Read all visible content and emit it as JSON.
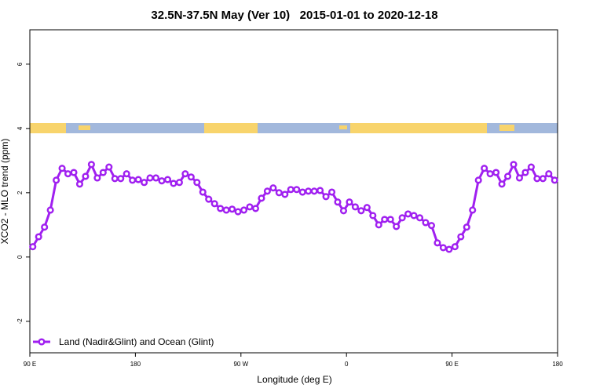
{
  "chart_data": {
    "type": "line",
    "title": "32.5N-37.5N May (Ver 10)   2015-01-01 to 2020-12-18",
    "xlabel": "Longitude (deg E)",
    "ylabel": "XCO2 - MLO trend (ppm)",
    "x": [
      92.5,
      97.5,
      102.5,
      107.5,
      112.5,
      117.5,
      122.5,
      127.5,
      132.5,
      137.5,
      142.5,
      147.5,
      152.5,
      157.5,
      162.5,
      167.5,
      172.5,
      177.5,
      182.5,
      187.5,
      192.5,
      197.5,
      202.5,
      207.5,
      212.5,
      217.5,
      222.5,
      227.5,
      232.5,
      237.5,
      242.5,
      247.5,
      252.5,
      257.5,
      262.5,
      267.5,
      272.5,
      277.5,
      282.5,
      287.5,
      292.5,
      297.5,
      302.5,
      307.5,
      312.5,
      317.5,
      322.5,
      327.5,
      332.5,
      337.5,
      342.5,
      347.5,
      352.5,
      357.5,
      362.5,
      367.5,
      372.5,
      377.5,
      382.5,
      387.5,
      392.5,
      397.5,
      402.5,
      407.5,
      412.5,
      417.5,
      422.5,
      427.5,
      432.5,
      437.5,
      442.5,
      447.5,
      452.5,
      457.5,
      462.5,
      467.5,
      472.5,
      477.5,
      482.5,
      487.5,
      492.5,
      497.5,
      502.5,
      507.5,
      512.5,
      517.5,
      522.5,
      527.5,
      532.5,
      537.5
    ],
    "series": [
      {
        "name": "Land (Nadir&Glint) and Ocean (Glint)",
        "color": "#a020f0",
        "values": [
          0.32,
          0.63,
          0.93,
          1.46,
          2.39,
          2.76,
          2.59,
          2.63,
          2.27,
          2.51,
          2.88,
          2.46,
          2.63,
          2.8,
          2.44,
          2.44,
          2.59,
          2.39,
          2.41,
          2.32,
          2.46,
          2.46,
          2.37,
          2.41,
          2.29,
          2.32,
          2.59,
          2.49,
          2.32,
          2.02,
          1.8,
          1.66,
          1.51,
          1.46,
          1.49,
          1.41,
          1.46,
          1.56,
          1.51,
          1.83,
          2.05,
          2.15,
          2.0,
          1.95,
          2.1,
          2.1,
          2.02,
          2.05,
          2.05,
          2.07,
          1.88,
          2.02,
          1.71,
          1.44,
          1.71,
          1.56,
          1.44,
          1.54,
          1.29,
          1.0,
          1.17,
          1.17,
          0.95,
          1.22,
          1.34,
          1.29,
          1.22,
          1.07,
          0.98,
          0.44,
          0.29,
          0.24,
          0.32,
          0.63,
          0.93,
          1.46,
          2.39,
          2.76,
          2.59,
          2.63,
          2.27,
          2.51,
          2.88,
          2.46,
          2.63,
          2.8,
          2.44,
          2.44,
          2.59,
          2.39
        ]
      }
    ],
    "xlim": [
      90,
      540
    ],
    "xticks": [
      {
        "value": 90,
        "label": "90 E"
      },
      180,
      {
        "value": 270,
        "label": "90 W"
      },
      {
        "value": 360,
        "label": "0"
      },
      {
        "value": 450,
        "label": "90 E"
      },
      {
        "value": 540,
        "label": "180"
      }
    ],
    "ylim": [
      -2.98,
      7.07
    ],
    "yticks": [
      -2,
      0,
      2,
      4,
      6
    ],
    "legend": "bottom-left"
  }
}
